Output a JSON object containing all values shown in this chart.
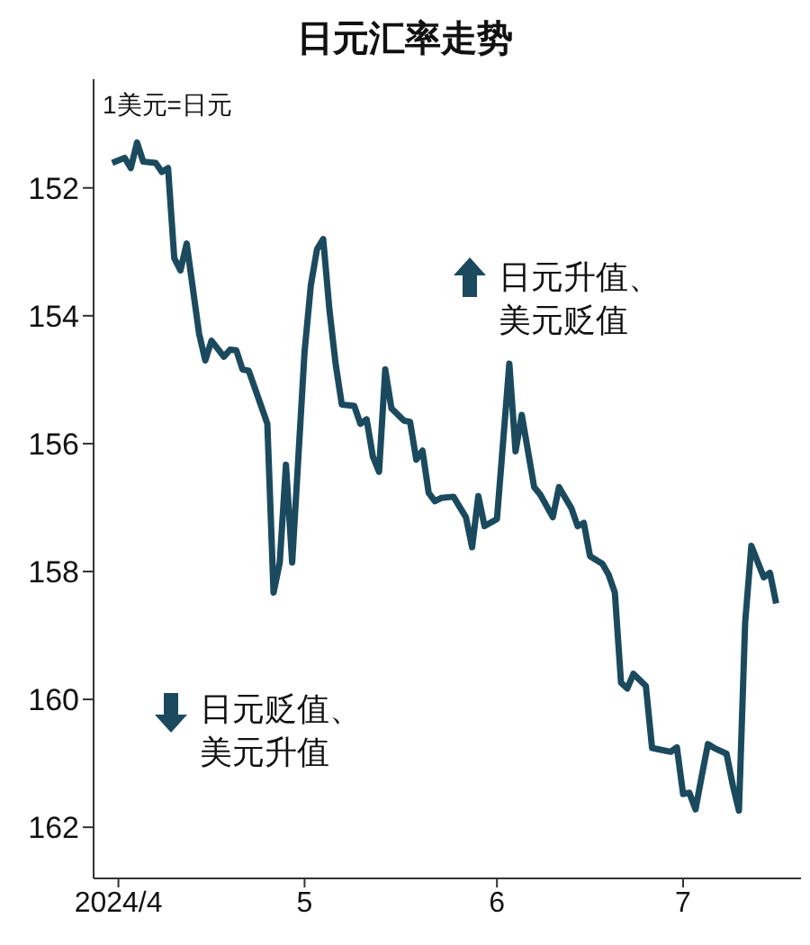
{
  "chart_data": {
    "type": "line",
    "title": "日元汇率走势",
    "ylabel": "1美元=日元",
    "annotations": [
      "日元升值、美元贬值",
      "日元贬值、美元升值"
    ],
    "x": [
      "2024-03-31",
      "2024-04-02",
      "2024-04-03",
      "2024-04-04",
      "2024-04-05",
      "2024-04-07",
      "2024-04-08",
      "2024-04-09",
      "2024-04-10",
      "2024-04-11",
      "2024-04-12",
      "2024-04-14",
      "2024-04-15",
      "2024-04-16",
      "2024-04-18",
      "2024-04-19",
      "2024-04-20",
      "2024-04-21",
      "2024-04-22",
      "2024-04-24",
      "2024-04-25",
      "2024-04-26",
      "2024-04-27",
      "2024-04-28",
      "2024-04-29",
      "2024-05-01",
      "2024-05-02",
      "2024-05-03",
      "2024-05-04",
      "2024-05-05",
      "2024-05-06",
      "2024-05-07",
      "2024-05-09",
      "2024-05-10",
      "2024-05-11",
      "2024-05-12",
      "2024-05-13",
      "2024-05-14",
      "2024-05-15",
      "2024-05-17",
      "2024-05-18",
      "2024-05-19",
      "2024-05-20",
      "2024-05-21",
      "2024-05-22",
      "2024-05-23",
      "2024-05-25",
      "2024-05-27",
      "2024-05-28",
      "2024-05-29",
      "2024-05-30",
      "2024-06-01",
      "2024-06-03",
      "2024-06-04",
      "2024-06-05",
      "2024-06-07",
      "2024-06-08",
      "2024-06-10",
      "2024-06-11",
      "2024-06-13",
      "2024-06-14",
      "2024-06-15",
      "2024-06-16",
      "2024-06-18",
      "2024-06-19",
      "2024-06-20",
      "2024-06-21",
      "2024-06-22",
      "2024-06-23",
      "2024-06-25",
      "2024-06-26",
      "2024-06-27",
      "2024-06-29",
      "2024-06-30",
      "2024-07-01",
      "2024-07-02",
      "2024-07-03",
      "2024-07-04",
      "2024-07-05",
      "2024-07-06",
      "2024-07-08",
      "2024-07-09",
      "2024-07-10",
      "2024-07-11",
      "2024-07-12",
      "2024-07-14",
      "2024-07-15",
      "2024-07-16"
    ],
    "series": [
      {
        "color": "#1b4a5e",
        "values": [
          151.61,
          151.53,
          151.69,
          151.29,
          151.59,
          151.61,
          151.75,
          151.69,
          153.1,
          153.29,
          152.87,
          154.28,
          154.7,
          154.39,
          154.64,
          154.53,
          154.54,
          154.84,
          154.86,
          155.41,
          155.69,
          158.33,
          157.86,
          156.33,
          157.86,
          154.56,
          153.53,
          152.96,
          152.8,
          153.9,
          154.75,
          155.39,
          155.41,
          155.69,
          155.62,
          156.2,
          156.44,
          154.84,
          155.45,
          155.64,
          155.66,
          156.25,
          156.11,
          156.77,
          156.9,
          156.85,
          156.83,
          157.15,
          157.62,
          156.82,
          157.29,
          157.18,
          154.75,
          156.12,
          155.55,
          156.68,
          156.8,
          157.15,
          156.68,
          157.01,
          157.29,
          157.24,
          157.76,
          157.88,
          158.05,
          158.33,
          159.74,
          159.83,
          159.6,
          159.79,
          160.76,
          160.78,
          160.82,
          160.75,
          161.48,
          161.46,
          161.72,
          161.2,
          160.7,
          160.76,
          160.85,
          161.34,
          161.74,
          158.8,
          157.6,
          158.09,
          158.02,
          158.5
        ]
      }
    ],
    "xlim": [
      "2024-03-28",
      "2024-07-20"
    ],
    "xticks": [
      {
        "value": "2024-04-01",
        "label": "2024/4"
      },
      {
        "value": "2024-05-01",
        "label": "5"
      },
      {
        "value": "2024-06-01",
        "label": "6"
      },
      {
        "value": "2024-07-01",
        "label": "7"
      }
    ],
    "ylim": [
      162.8,
      150.3
    ],
    "yticks": [
      152,
      154,
      156,
      158,
      160,
      162
    ],
    "grid": false,
    "legend": false,
    "marker": "none",
    "line_style": "solid"
  }
}
